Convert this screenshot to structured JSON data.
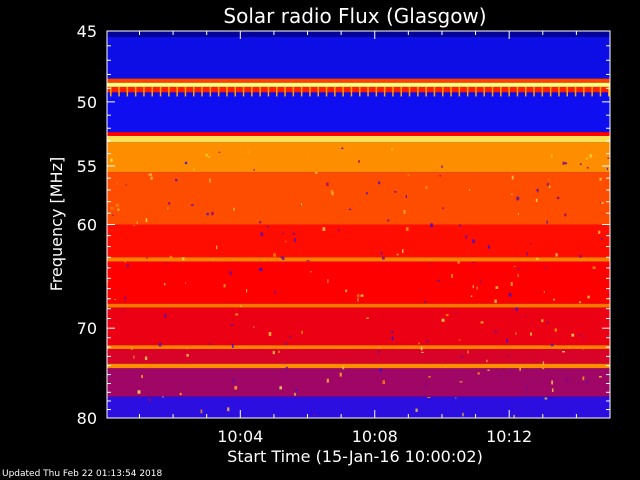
{
  "chart_data": {
    "type": "heatmap",
    "title": "Solar radio Flux (Glasgow)",
    "xlabel": "Start Time (15-Jan-16 10:00:02)",
    "ylabel": "Frequency [MHz]",
    "yscale": "log",
    "ylim": [
      45,
      80
    ],
    "y_inverted": true,
    "xlim": [
      "10:00:02",
      "10:15:00"
    ],
    "x_ticks": [
      "10:04",
      "10:08",
      "10:12"
    ],
    "y_ticks": [
      45,
      50,
      55,
      60,
      70,
      80
    ],
    "colormap": [
      "#000080",
      "#1010ff",
      "#ff0000",
      "#ffa000",
      "#ffff80"
    ],
    "bands": [
      {
        "f_from": 45.0,
        "f_to": 45.4,
        "level": 0.05
      },
      {
        "f_from": 45.4,
        "f_to": 48.3,
        "level": 0.2
      },
      {
        "f_from": 48.3,
        "f_to": 48.6,
        "level": 0.6
      },
      {
        "f_from": 48.6,
        "f_to": 48.9,
        "level": 1.0
      },
      {
        "f_from": 48.9,
        "f_to": 49.3,
        "level": 0.55
      },
      {
        "f_from": 49.3,
        "f_to": 52.3,
        "level": 0.22
      },
      {
        "f_from": 52.3,
        "f_to": 52.6,
        "level": 0.5
      },
      {
        "f_from": 52.6,
        "f_to": 53.1,
        "level": 0.92
      },
      {
        "f_from": 53.1,
        "f_to": 55.5,
        "level": 0.72
      },
      {
        "f_from": 55.5,
        "f_to": 60.0,
        "level": 0.62
      },
      {
        "f_from": 60.0,
        "f_to": 63.0,
        "level": 0.52
      },
      {
        "f_from": 63.0,
        "f_to": 63.4,
        "level": 0.7
      },
      {
        "f_from": 63.4,
        "f_to": 67.5,
        "level": 0.5
      },
      {
        "f_from": 67.5,
        "f_to": 67.9,
        "level": 0.68
      },
      {
        "f_from": 67.9,
        "f_to": 71.8,
        "level": 0.48
      },
      {
        "f_from": 71.8,
        "f_to": 72.2,
        "level": 0.7
      },
      {
        "f_from": 72.2,
        "f_to": 73.8,
        "level": 0.46
      },
      {
        "f_from": 73.8,
        "f_to": 74.3,
        "level": 0.72
      },
      {
        "f_from": 74.3,
        "f_to": 77.5,
        "level": 0.4
      },
      {
        "f_from": 77.5,
        "f_to": 80.0,
        "level": 0.28
      }
    ]
  },
  "footer": {
    "updated": "Updated Thu Feb 22 01:13:54 2018"
  }
}
